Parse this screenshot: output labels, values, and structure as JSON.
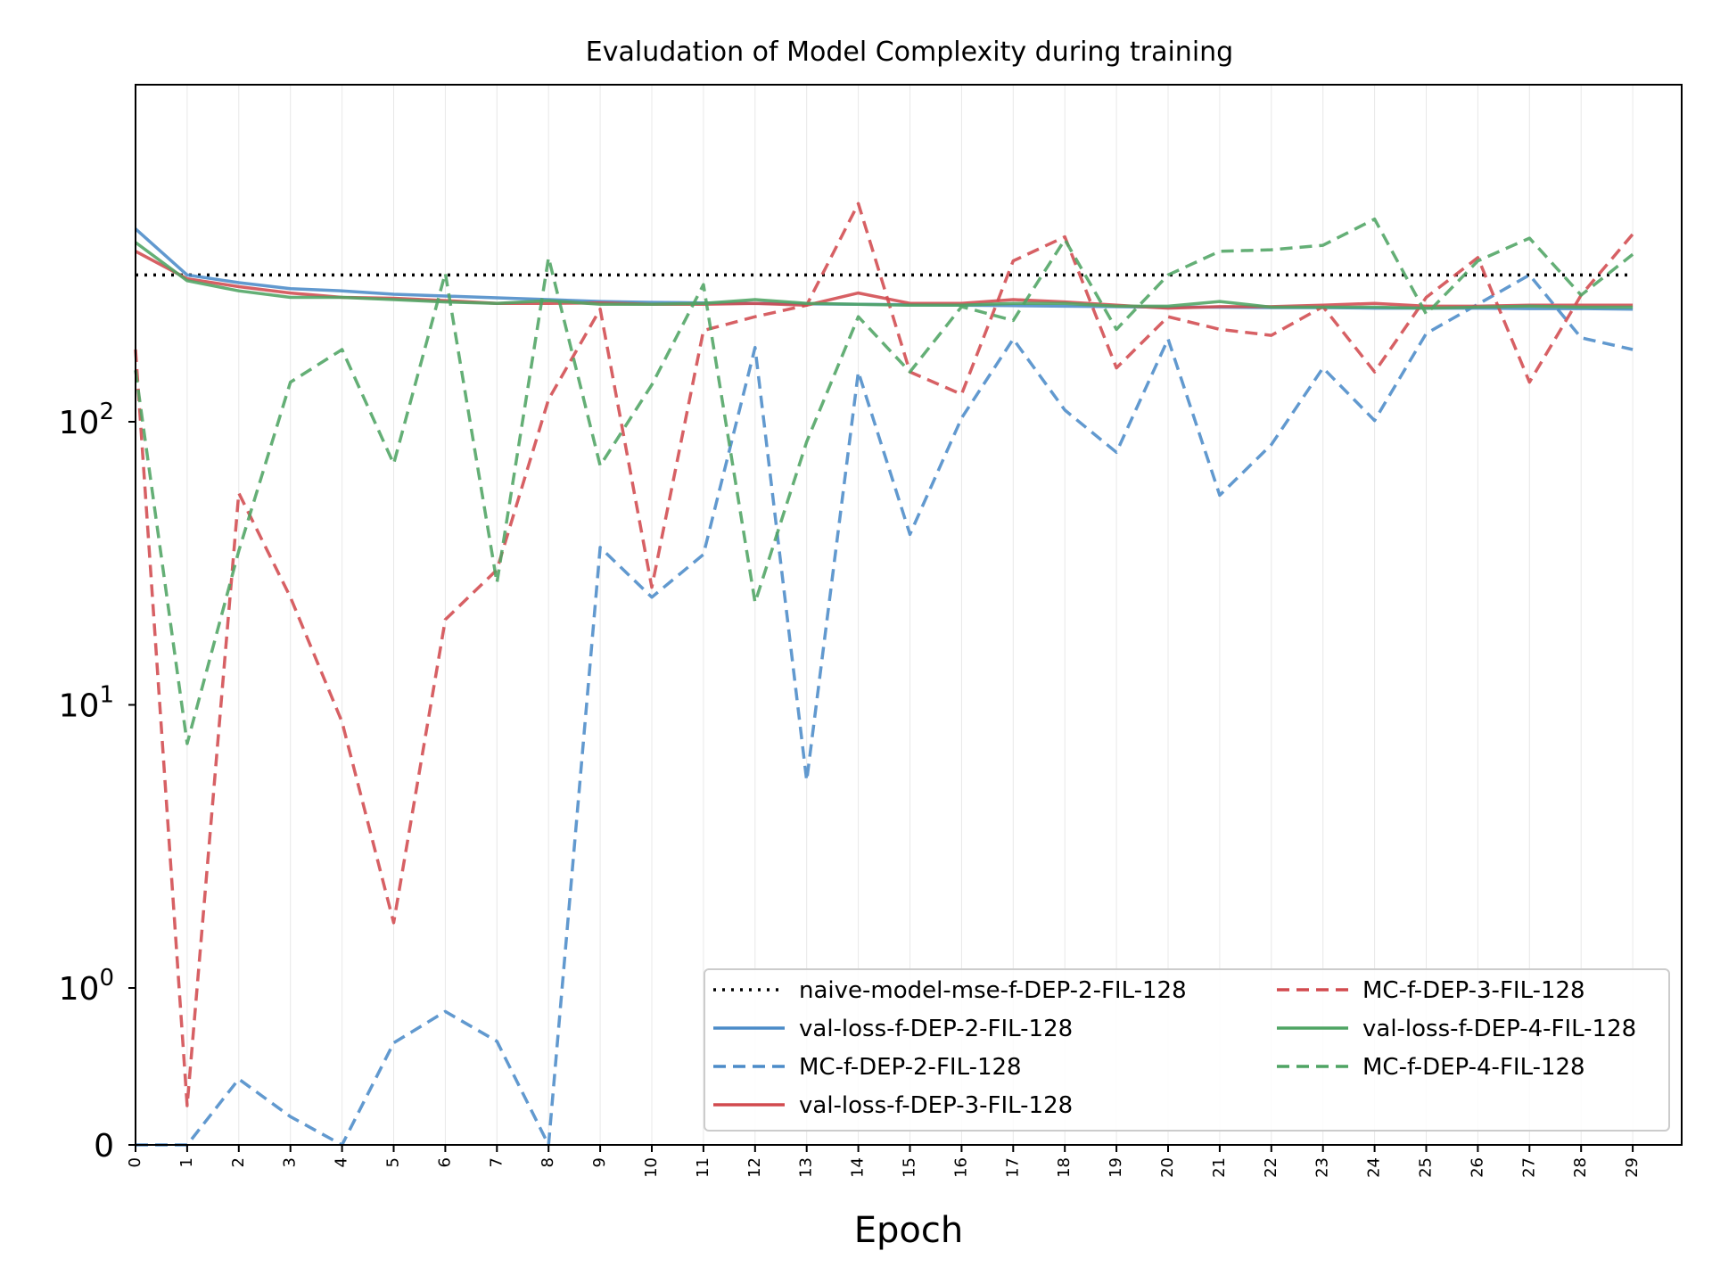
{
  "chart_data": {
    "type": "line",
    "title": "Evaludation of Model Complexity during training",
    "xlabel": "Epoch",
    "ylabel": "",
    "yscale": "symlog",
    "ylim": [
      0,
      700
    ],
    "ytick_labels": [
      {
        "value": 0,
        "base": "0",
        "exp": ""
      },
      {
        "value": 1,
        "base": "10",
        "exp": "0"
      },
      {
        "value": 10,
        "base": "10",
        "exp": "1"
      },
      {
        "value": 100,
        "base": "10",
        "exp": "2"
      }
    ],
    "grid": "vertical-light",
    "legend_position": "lower-right, two columns",
    "x": [
      0,
      1,
      2,
      3,
      4,
      5,
      6,
      7,
      8,
      9,
      10,
      11,
      12,
      13,
      14,
      15,
      16,
      17,
      18,
      19,
      20,
      21,
      22,
      23,
      24,
      25,
      26,
      27,
      28,
      29
    ],
    "series": [
      {
        "name": "naive-model-mse-f-DEP-2-FIL-128",
        "color": "#000000",
        "dash": "dotted",
        "values": [
          330,
          330,
          330,
          330,
          330,
          330,
          330,
          330,
          330,
          330,
          330,
          330,
          330,
          330,
          330,
          330,
          330,
          330,
          330,
          330,
          330,
          330,
          330,
          330,
          330,
          330,
          330,
          330,
          330,
          330
        ]
      },
      {
        "name": "val-loss-f-DEP-2-FIL-128",
        "color": "#4b8bc8",
        "dash": "solid",
        "values": [
          480,
          330,
          310,
          295,
          290,
          282,
          278,
          274,
          270,
          266,
          264,
          263,
          262,
          261,
          260,
          259,
          258,
          257,
          256,
          255,
          254,
          254,
          253,
          253,
          252,
          252,
          252,
          251,
          251,
          250
        ]
      },
      {
        "name": "MC-f-DEP-2-FIL-128",
        "color": "#4b8bc8",
        "dash": "dashed",
        "values": [
          0,
          0,
          0.42,
          0.18,
          0,
          0.65,
          0.85,
          0.66,
          0,
          36,
          24,
          34,
          183,
          5.4,
          150,
          40,
          103,
          196,
          110,
          78,
          196,
          55,
          83,
          155,
          101,
          205,
          260,
          330,
          198,
          180
        ]
      },
      {
        "name": "val-loss-f-DEP-3-FIL-128",
        "color": "#d24a4e",
        "dash": "solid",
        "values": [
          400,
          320,
          300,
          285,
          275,
          273,
          268,
          262,
          262,
          263,
          260,
          260,
          262,
          258,
          285,
          262,
          262,
          270,
          265,
          258,
          252,
          255,
          255,
          258,
          262,
          256,
          256,
          258,
          258,
          258
        ]
      },
      {
        "name": "MC-f-DEP-3-FIL-128",
        "color": "#d24a4e",
        "dash": "dashed",
        "values": [
          180,
          0.25,
          56,
          24,
          8.7,
          1.7,
          20,
          30,
          120,
          250,
          26,
          210,
          235,
          258,
          590,
          150,
          125,
          370,
          450,
          155,
          235,
          212,
          202,
          255,
          150,
          275,
          380,
          138,
          280,
          460
        ]
      },
      {
        "name": "val-loss-f-DEP-4-FIL-128",
        "color": "#4ea463",
        "dash": "solid",
        "values": [
          430,
          315,
          290,
          275,
          275,
          270,
          265,
          262,
          268,
          260,
          260,
          262,
          270,
          262,
          260,
          258,
          258,
          262,
          262,
          256,
          256,
          266,
          254,
          254,
          254,
          252,
          254,
          256,
          254,
          254
        ]
      },
      {
        "name": "MC-f-DEP-4-FIL-128",
        "color": "#4ea463",
        "dash": "dashed",
        "values": [
          152,
          7.3,
          35,
          138,
          180,
          71,
          335,
          27,
          380,
          70,
          135,
          305,
          23,
          85,
          235,
          150,
          255,
          228,
          440,
          212,
          330,
          400,
          405,
          420,
          520,
          240,
          370,
          445,
          280,
          390
        ]
      }
    ]
  }
}
